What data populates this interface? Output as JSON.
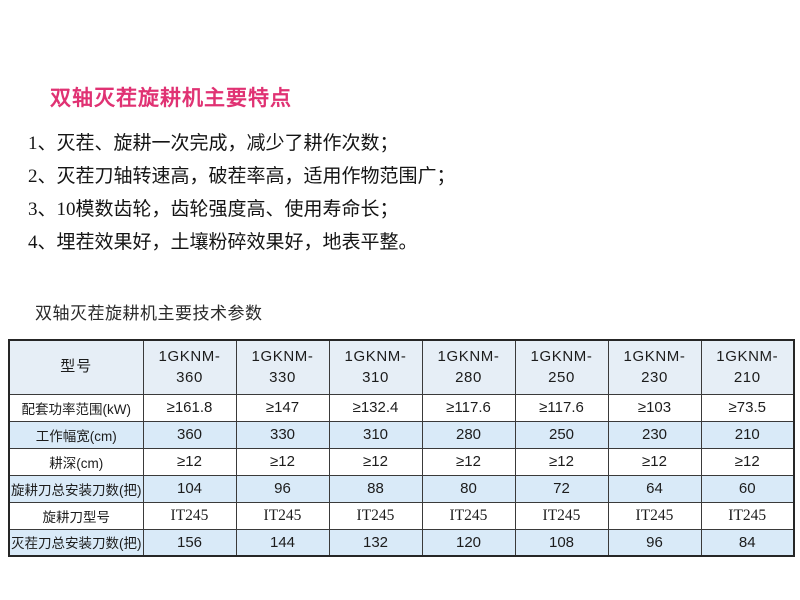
{
  "page": {
    "title": "双轴灭茬旋耕机主要特点",
    "subtitle": "双轴灭茬旋耕机主要技术参数"
  },
  "features": [
    "1、灭茬、旋耕一次完成，减少了耕作次数；",
    "2、灭茬刀轴转速高，破茬率高，适用作物范围广；",
    "3、10模数齿轮，齿轮强度高、使用寿命长；",
    "4、埋茬效果好，土壤粉碎效果好，地表平整。"
  ],
  "colors": {
    "title_pink": "#e03273",
    "header_bg": "#e6eef6",
    "alt_row_blue": "#d9eaf8",
    "border_dark": "#2a2a2a"
  },
  "table": {
    "corner_header": "型号",
    "model_headers": [
      "1GKNM-360",
      "1GKNM-330",
      "1GKNM-310",
      "1GKNM-280",
      "1GKNM-250",
      "1GKNM-230",
      "1GKNM-210"
    ],
    "rows": [
      {
        "label": "配套功率范围(kW)",
        "values": [
          "≥161.8",
          "≥147",
          "≥132.4",
          "≥117.6",
          "≥117.6",
          "≥103",
          "≥73.5"
        ]
      },
      {
        "label": "工作幅宽(cm)",
        "values": [
          "360",
          "330",
          "310",
          "280",
          "250",
          "230",
          "210"
        ]
      },
      {
        "label": "耕深(cm)",
        "values": [
          "≥12",
          "≥12",
          "≥12",
          "≥12",
          "≥12",
          "≥12",
          "≥12"
        ]
      },
      {
        "label": "旋耕刀总安装刀数(把)",
        "values": [
          "104",
          "96",
          "88",
          "80",
          "72",
          "64",
          "60"
        ]
      },
      {
        "label": "旋耕刀型号",
        "values": [
          "IT245",
          "IT245",
          "IT245",
          "IT245",
          "IT245",
          "IT245",
          "IT245"
        ]
      },
      {
        "label": "灭茬刀总安装刀数(把)",
        "values": [
          "156",
          "144",
          "132",
          "120",
          "108",
          "96",
          "84"
        ]
      }
    ]
  }
}
